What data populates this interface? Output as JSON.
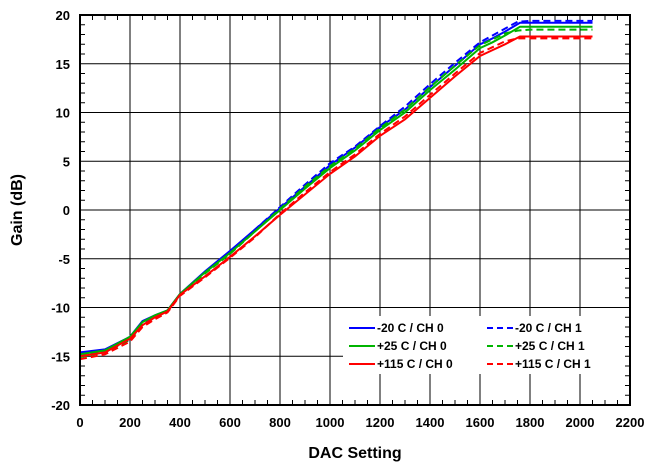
{
  "chart_data": {
    "type": "line",
    "title": "",
    "xlabel": "DAC Setting",
    "ylabel": "Gain (dB)",
    "xlim": [
      0,
      2200
    ],
    "ylim": [
      -20,
      20
    ],
    "x_ticks": [
      0,
      200,
      400,
      600,
      800,
      1000,
      1200,
      1400,
      1600,
      1800,
      2000,
      2200
    ],
    "y_ticks": [
      -20,
      -15,
      -10,
      -5,
      0,
      5,
      10,
      15,
      20
    ],
    "grid": true,
    "legend_position": "bottom-right",
    "series": [
      {
        "name": "-20 C / CH 0",
        "color": "#0000ff",
        "dash": "solid",
        "x": [
          0,
          100,
          200,
          250,
          300,
          350,
          400,
          500,
          600,
          700,
          800,
          900,
          1000,
          1100,
          1200,
          1300,
          1400,
          1500,
          1600,
          1650,
          1700,
          1760,
          1800,
          2050
        ],
        "y": [
          -14.6,
          -14.3,
          -13.0,
          -11.4,
          -10.8,
          -10.3,
          -8.6,
          -6.3,
          -4.2,
          -2.0,
          0.2,
          2.4,
          4.6,
          6.4,
          8.5,
          10.3,
          12.6,
          14.8,
          17.0,
          17.6,
          18.3,
          19.2,
          19.2,
          19.2
        ]
      },
      {
        "name": "-20 C / CH 1",
        "color": "#0000ff",
        "dash": "dashed",
        "x": [
          0,
          100,
          200,
          250,
          300,
          350,
          400,
          500,
          600,
          700,
          800,
          900,
          1000,
          1100,
          1200,
          1300,
          1400,
          1500,
          1600,
          1650,
          1700,
          1750,
          1800,
          2050
        ],
        "y": [
          -15.0,
          -14.5,
          -13.3,
          -11.7,
          -11.0,
          -10.4,
          -8.7,
          -6.4,
          -4.3,
          -2.0,
          0.3,
          2.6,
          4.8,
          6.5,
          8.6,
          10.6,
          12.9,
          15.1,
          17.2,
          17.9,
          18.6,
          19.3,
          19.4,
          19.4
        ]
      },
      {
        "name": "+25 C / CH 0",
        "color": "#00b400",
        "dash": "solid",
        "x": [
          0,
          100,
          200,
          250,
          300,
          350,
          400,
          500,
          600,
          700,
          800,
          900,
          1000,
          1100,
          1200,
          1300,
          1400,
          1500,
          1600,
          1650,
          1700,
          1760,
          1800,
          2050
        ],
        "y": [
          -14.8,
          -14.4,
          -13.0,
          -11.5,
          -10.8,
          -10.3,
          -8.6,
          -6.4,
          -4.4,
          -2.2,
          0.0,
          2.2,
          4.3,
          6.1,
          8.2,
          10.0,
          12.3,
          14.4,
          16.6,
          17.2,
          17.9,
          18.8,
          18.8,
          18.8
        ]
      },
      {
        "name": "+25 C / CH 1",
        "color": "#00b400",
        "dash": "dashed",
        "x": [
          0,
          100,
          200,
          250,
          300,
          350,
          400,
          500,
          600,
          700,
          800,
          900,
          1000,
          1100,
          1200,
          1300,
          1400,
          1500,
          1600,
          1650,
          1700,
          1750,
          1800,
          2050
        ],
        "y": [
          -15.1,
          -14.6,
          -13.3,
          -11.8,
          -11.0,
          -10.4,
          -8.7,
          -6.5,
          -4.5,
          -2.2,
          0.1,
          2.4,
          4.5,
          6.3,
          8.4,
          10.3,
          12.6,
          14.8,
          16.9,
          17.5,
          18.1,
          18.4,
          18.5,
          18.5
        ]
      },
      {
        "name": "+115 C / CH 0",
        "color": "#ff0000",
        "dash": "solid",
        "x": [
          0,
          100,
          200,
          250,
          300,
          350,
          400,
          500,
          600,
          700,
          800,
          900,
          1000,
          1100,
          1200,
          1300,
          1400,
          1500,
          1600,
          1650,
          1700,
          1760,
          1800,
          2050
        ],
        "y": [
          -15.0,
          -14.6,
          -13.2,
          -11.8,
          -11.0,
          -10.4,
          -8.7,
          -6.8,
          -4.8,
          -2.7,
          -0.5,
          1.6,
          3.7,
          5.5,
          7.6,
          9.3,
          11.5,
          13.7,
          15.8,
          16.4,
          17.0,
          17.8,
          17.8,
          17.8
        ]
      },
      {
        "name": "+115 C / CH 1",
        "color": "#ff0000",
        "dash": "dashed",
        "x": [
          0,
          100,
          200,
          250,
          300,
          350,
          400,
          500,
          600,
          700,
          800,
          900,
          1000,
          1100,
          1200,
          1300,
          1400,
          1500,
          1600,
          1650,
          1700,
          1750,
          1800,
          2050
        ],
        "y": [
          -15.3,
          -14.8,
          -13.5,
          -12.0,
          -11.2,
          -10.5,
          -8.8,
          -6.9,
          -4.9,
          -2.8,
          -0.4,
          1.8,
          3.9,
          5.7,
          7.8,
          9.6,
          11.8,
          14.0,
          16.1,
          16.7,
          17.3,
          17.6,
          17.6,
          17.6
        ]
      }
    ]
  }
}
